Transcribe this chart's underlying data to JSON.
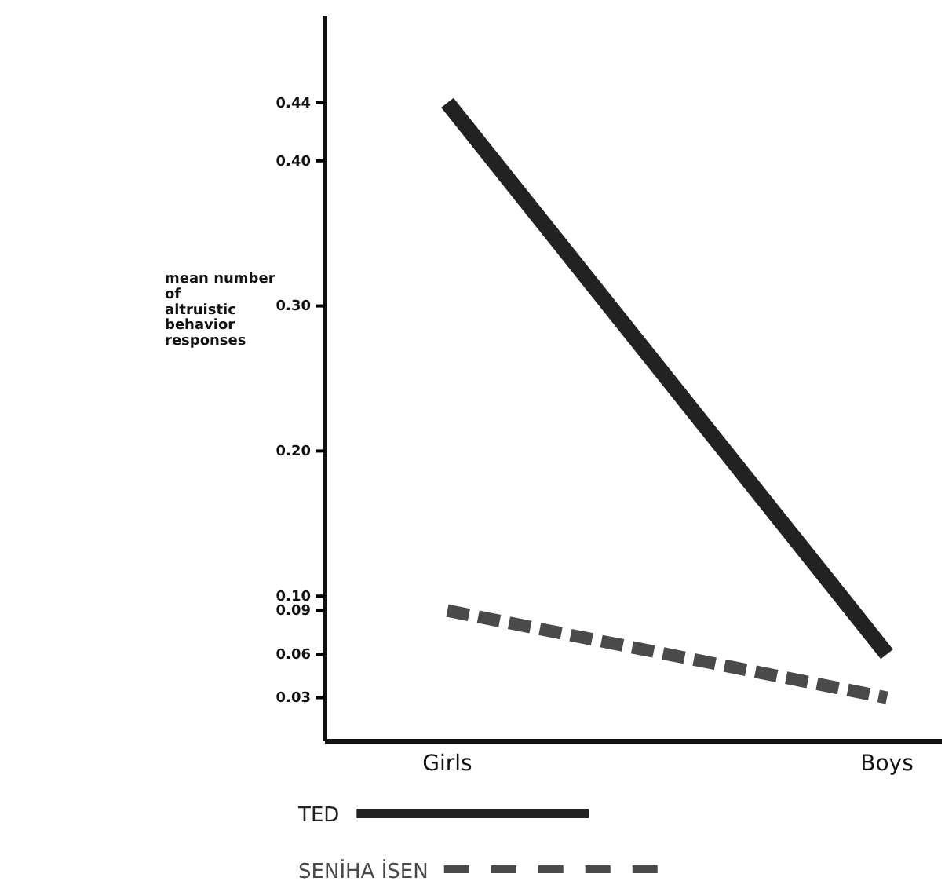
{
  "chart_data": {
    "type": "line",
    "ylabel": "mean number of altruistic behavior responses",
    "categories": [
      "Girls",
      "Boys"
    ],
    "series": [
      {
        "name": "TED",
        "color": "#222222",
        "values": [
          0.44,
          0.06
        ],
        "line_style": "solid"
      },
      {
        "name": "SENİHA İSEN",
        "color": "#4a4a4a",
        "values": [
          0.09,
          0.03
        ],
        "line_style": "dashed"
      }
    ],
    "ylim": [
      0,
      0.5
    ],
    "yticks": [
      {
        "value": 0.03,
        "label": "0.03"
      },
      {
        "value": 0.06,
        "label": "0.06"
      },
      {
        "value": 0.09,
        "label": "0.09"
      },
      {
        "value": 0.1,
        "label": "0.10"
      },
      {
        "value": 0.2,
        "label": "0.20"
      },
      {
        "value": 0.3,
        "label": "0.30"
      },
      {
        "value": 0.4,
        "label": "0.40"
      },
      {
        "value": 0.44,
        "label": "0.44"
      }
    ],
    "grid": false,
    "legend": "bottom",
    "marker": "none"
  }
}
